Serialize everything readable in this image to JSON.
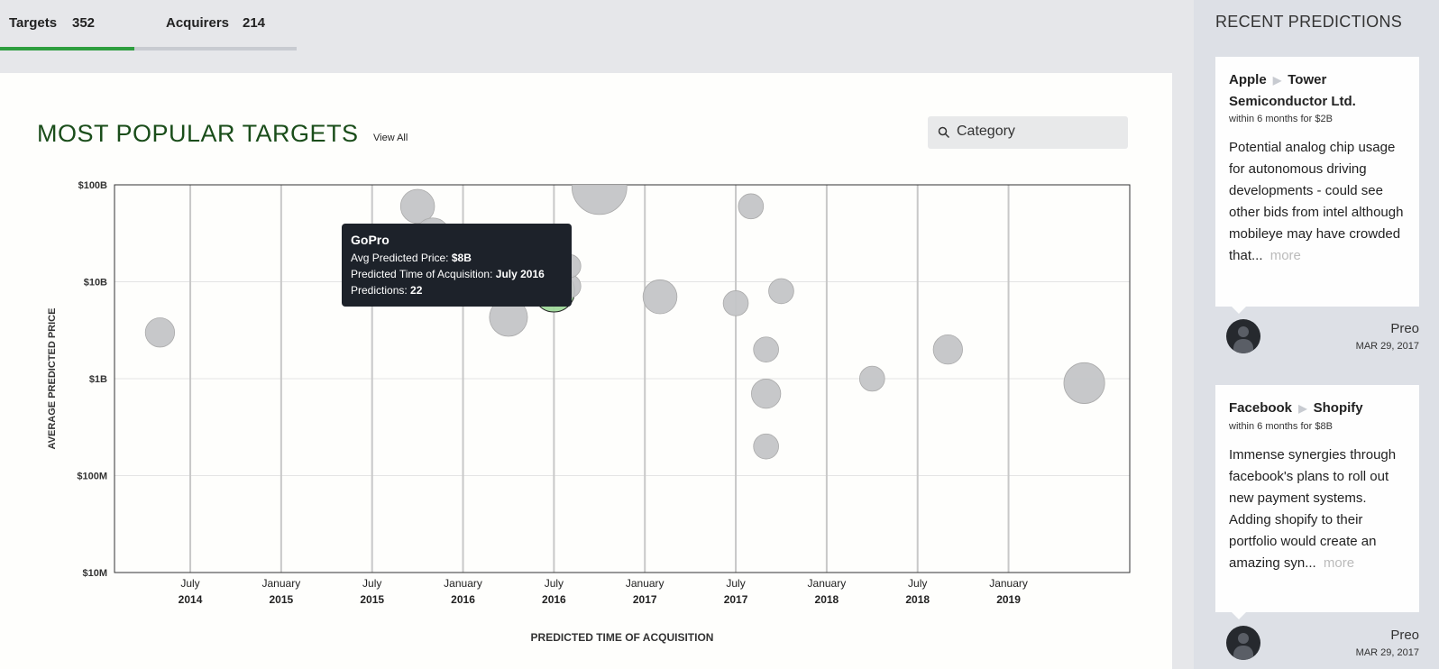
{
  "tabs": [
    {
      "label": "Targets",
      "count": "352",
      "active": true
    },
    {
      "label": "Acquirers",
      "count": "214",
      "active": false
    }
  ],
  "main": {
    "title": "MOST POPULAR TARGETS",
    "view_all": "View All",
    "category_placeholder": "Category"
  },
  "tooltip": {
    "title": "GoPro",
    "price_label": "Avg Predicted Price:",
    "price_value": "$8B",
    "time_label": "Predicted Time of Acquisition:",
    "time_value": "July 2016",
    "pred_label": "Predictions:",
    "pred_value": "22"
  },
  "chart_data": {
    "type": "scatter",
    "xlabel": "PREDICTED TIME OF ACQUISITION",
    "ylabel": "AVERAGE PREDICTED PRICE",
    "y_scale": "log",
    "ylim": [
      "$10M",
      "$100B"
    ],
    "y_ticks": [
      {
        "label": "$100B",
        "value": 100000000000
      },
      {
        "label": "$10B",
        "value": 10000000000
      },
      {
        "label": "$1B",
        "value": 1000000000
      },
      {
        "label": "$100M",
        "value": 100000000
      },
      {
        "label": "$10M",
        "value": 10000000
      }
    ],
    "x_ticks": [
      {
        "month": "July",
        "year": "2014",
        "date": "2014-07"
      },
      {
        "month": "January",
        "year": "2015",
        "date": "2015-01"
      },
      {
        "month": "July",
        "year": "2015",
        "date": "2015-07"
      },
      {
        "month": "January",
        "year": "2016",
        "date": "2016-01"
      },
      {
        "month": "July",
        "year": "2016",
        "date": "2016-07"
      },
      {
        "month": "January",
        "year": "2017",
        "date": "2017-01"
      },
      {
        "month": "July",
        "year": "2017",
        "date": "2017-07"
      },
      {
        "month": "January",
        "year": "2018",
        "date": "2018-01"
      },
      {
        "month": "July",
        "year": "2018",
        "date": "2018-07"
      },
      {
        "month": "January",
        "year": "2019",
        "date": "2019-01"
      }
    ],
    "xlim": [
      "2014-02",
      "2019-09"
    ],
    "grid": true,
    "highlight_color": "#9fd89a",
    "bubble_color": "#c4c5c7",
    "points": [
      {
        "date": "2014-05",
        "price": 3000000000,
        "predictions": 10
      },
      {
        "date": "2015-10",
        "price": 60000000000,
        "predictions": 14
      },
      {
        "date": "2015-11",
        "price": 30000000000,
        "predictions": 15
      },
      {
        "date": "2016-04",
        "price": 4300000000,
        "predictions": 18
      },
      {
        "date": "2016-07",
        "price": 8000000000,
        "predictions": 22,
        "name": "GoPro",
        "highlight": true
      },
      {
        "date": "2016-08",
        "price": 9000000000,
        "predictions": 6
      },
      {
        "date": "2016-08",
        "price": 14500000000,
        "predictions": 6
      },
      {
        "date": "2016-10",
        "price": 95000000000,
        "predictions": 40
      },
      {
        "date": "2017-02",
        "price": 7000000000,
        "predictions": 14
      },
      {
        "date": "2017-07",
        "price": 6000000000,
        "predictions": 7
      },
      {
        "date": "2017-08",
        "price": 60000000000,
        "predictions": 7
      },
      {
        "date": "2017-09",
        "price": 200000000,
        "predictions": 7
      },
      {
        "date": "2017-09",
        "price": 700000000,
        "predictions": 10
      },
      {
        "date": "2017-09",
        "price": 2000000000,
        "predictions": 7
      },
      {
        "date": "2017-10",
        "price": 8000000000,
        "predictions": 7
      },
      {
        "date": "2018-04",
        "price": 1000000000,
        "predictions": 7
      },
      {
        "date": "2018-09",
        "price": 2000000000,
        "predictions": 10
      },
      {
        "date": "2019-06",
        "price": 900000000,
        "predictions": 21
      }
    ]
  },
  "sidebar": {
    "title": "RECENT PREDICTIONS",
    "cards": [
      {
        "acquirer": "Apple",
        "target": "Tower Semiconductor Ltd.",
        "meta": "within 6 months for $2B",
        "body": "Potential analog chip usage for autonomous driving developments - could see other bids from intel although mobileye may have crowded that...",
        "more": "more",
        "author": "Preo",
        "date": "MAR 29, 2017"
      },
      {
        "acquirer": "Facebook",
        "target": "Shopify",
        "meta": "within 6 months for $8B",
        "body": "Immense synergies through facebook's plans to roll out new payment systems. Adding shopify to their portfolio would create an amazing syn...",
        "more": "more",
        "author": "Preo",
        "date": "MAR 29, 2017"
      }
    ]
  },
  "icons": {
    "search": "search-icon",
    "arrow": "▶"
  }
}
